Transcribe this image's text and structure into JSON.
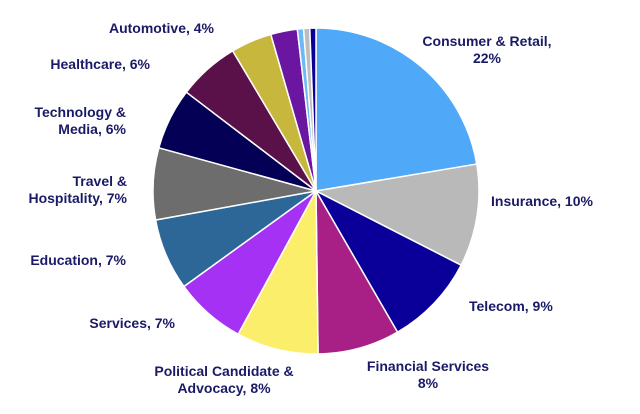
{
  "chart_data": {
    "type": "pie",
    "slices": [
      {
        "label": [
          "Consumer & Retail,",
          "22%"
        ],
        "value": 22,
        "color": "#4FA9F8"
      },
      {
        "label": [
          "Insurance, 10%"
        ],
        "value": 10,
        "color": "#B9B9B9"
      },
      {
        "label": [
          "Telecom, 9%"
        ],
        "value": 9,
        "color": "#0A0099"
      },
      {
        "label": [
          "Financial Services",
          "8%"
        ],
        "value": 8,
        "color": "#A81F86"
      },
      {
        "label": [
          "Political Candidate &",
          "Advocacy, 8%"
        ],
        "value": 8,
        "color": "#FBEE6A"
      },
      {
        "label": [
          "Services, 7%"
        ],
        "value": 7,
        "color": "#A531F5"
      },
      {
        "label": [
          "Education, 7%"
        ],
        "value": 7,
        "color": "#2D6798"
      },
      {
        "label": [
          "Travel &",
          "Hospitality, 7%"
        ],
        "value": 7,
        "color": "#6D6D6D"
      },
      {
        "label": [
          "Technology &",
          "Media, 6%"
        ],
        "value": 6,
        "color": "#040055"
      },
      {
        "label": [
          "Healthcare, 6%"
        ],
        "value": 6,
        "color": "#5A1049"
      },
      {
        "label": [
          "Automotive, 4%"
        ],
        "value": 4,
        "color": "#C8B73D"
      },
      {
        "label": [],
        "value": 2.6,
        "color": "#6A16A0"
      },
      {
        "label": [],
        "value": 0.6,
        "color": "#6FB8F8"
      },
      {
        "label": [],
        "value": 0.6,
        "color": "#BDBDBD"
      },
      {
        "label": [],
        "value": 0.6,
        "color": "#0A0099"
      }
    ],
    "label_color": "#1A1A66",
    "legend": "none"
  }
}
